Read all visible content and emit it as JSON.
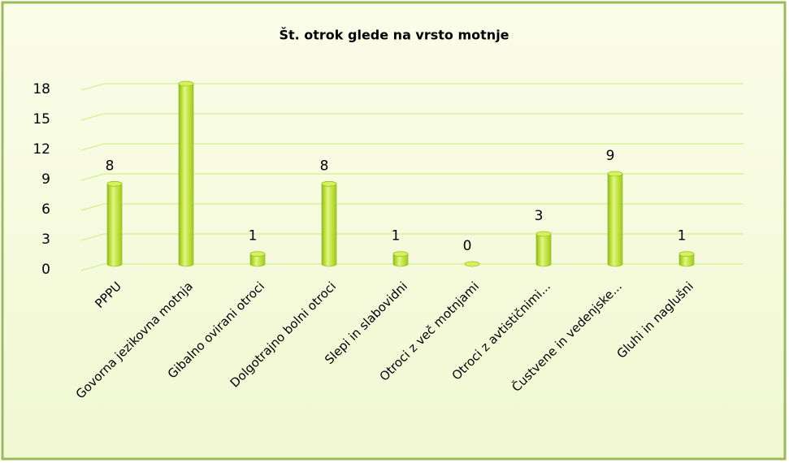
{
  "chart_data": {
    "type": "bar",
    "title": "Št. otrok glede na vrsto motnje",
    "categories": [
      "PPPU",
      "Govorna jezikovna motnja",
      "Gibalno ovirani otroci",
      "Dolgotrajno bolni otroci",
      "Slepi in slabovidni",
      "Otroci z več motnjami",
      "Otroci z avtističnimi...",
      "Čustvene in vedenjske...",
      "Gluhi in naglušni"
    ],
    "values": [
      8,
      18,
      1,
      8,
      1,
      0,
      3,
      9,
      1
    ],
    "value_labels": [
      "8",
      null,
      "1",
      "8",
      "1",
      "0",
      "3",
      "9",
      "1"
    ],
    "color": "#b5e61d",
    "ylim": [
      0,
      18
    ],
    "yticks": [
      0,
      3,
      6,
      9,
      12,
      15,
      18
    ],
    "grid": true
  }
}
